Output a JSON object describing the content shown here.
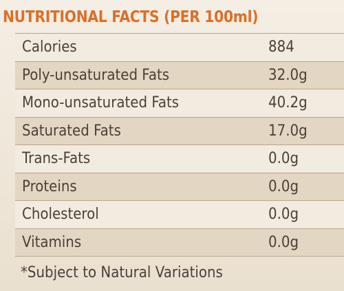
{
  "header": {
    "title": "NUTRITIONAL FACTS (PER 100ml)"
  },
  "table": {
    "rows": [
      [
        "Calories",
        "884"
      ],
      [
        "Poly-unsaturated Fats",
        "32.0g"
      ],
      [
        "Mono-unsaturated Fats",
        "40.2g"
      ],
      [
        "Saturated Fats",
        "17.0g"
      ],
      [
        "Trans-Fats",
        "0.0g"
      ],
      [
        "Proteins",
        "0.0g"
      ],
      [
        "Cholesterol",
        "0.0g"
      ],
      [
        "Vitamins",
        "0.0g"
      ]
    ]
  },
  "footnote": "*Subject to Natural Variations"
}
